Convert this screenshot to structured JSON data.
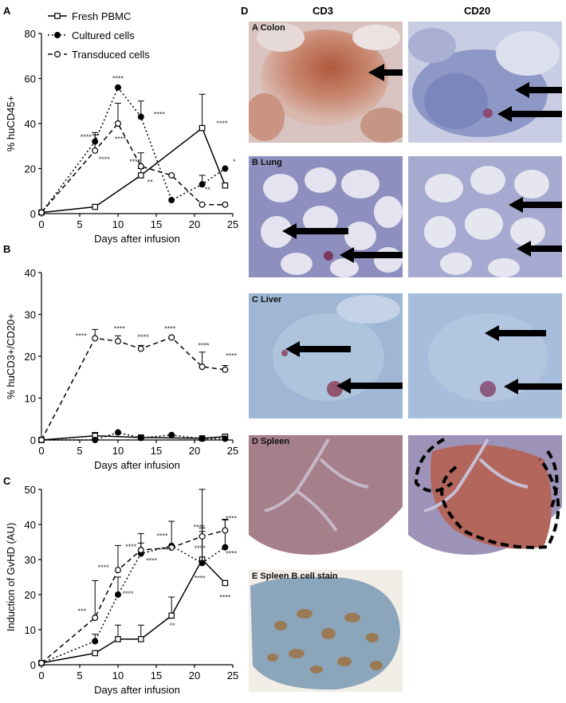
{
  "panels": {
    "a": "A",
    "b": "B",
    "c": "C",
    "d": "D"
  },
  "columns": {
    "cd3": "CD3",
    "cd20": "CD20"
  },
  "micrographs": {
    "colon": "A Colon",
    "lung": "B Lung",
    "liver": "C Liver",
    "spleen": "D Spleen",
    "spleen_b": "E Spleen B cell stain"
  },
  "legend": {
    "fresh": "Fresh PBMC",
    "cultured": "Cultured cells",
    "transduced": "Transduced cells"
  },
  "chart_data": [
    {
      "type": "line",
      "panel": "A",
      "xlabel": "Days after infusion",
      "ylabel": "% huCD45+",
      "xlim": [
        0,
        25
      ],
      "ylim": [
        0,
        80
      ],
      "xticks": [
        0,
        5,
        10,
        15,
        20,
        25
      ],
      "yticks": [
        0,
        20,
        40,
        60,
        80
      ],
      "series": [
        {
          "name": "Fresh PBMC",
          "x": [
            0,
            7,
            13,
            21,
            24
          ],
          "y": [
            0.5,
            3,
            17,
            38,
            12.5
          ],
          "err": [
            0,
            1,
            3,
            15,
            0
          ]
        },
        {
          "name": "Cultured cells",
          "x": [
            0,
            7,
            10,
            13,
            17,
            21,
            24
          ],
          "y": [
            0.5,
            32,
            56,
            43,
            6,
            13,
            20
          ],
          "err": [
            0,
            4,
            0,
            7,
            0,
            4,
            0
          ]
        },
        {
          "name": "Transduced cells",
          "x": [
            0,
            7,
            10,
            13,
            17,
            21,
            24
          ],
          "y": [
            0.5,
            28,
            40,
            21,
            17,
            4,
            4
          ],
          "err": [
            0,
            7,
            9,
            6,
            0,
            0,
            0
          ]
        }
      ],
      "annotations": [
        {
          "x": 5.8,
          "y": 33,
          "text": "****"
        },
        {
          "x": 8.2,
          "y": 23,
          "text": "****"
        },
        {
          "x": 10,
          "y": 59,
          "text": "****"
        },
        {
          "x": 10.3,
          "y": 32,
          "text": "****"
        },
        {
          "x": 15.4,
          "y": 43,
          "text": "****"
        },
        {
          "x": 12.2,
          "y": 22,
          "text": "****"
        },
        {
          "x": 14.2,
          "y": 13,
          "text": "**"
        },
        {
          "x": 21.7,
          "y": 9.5,
          "text": "**"
        },
        {
          "x": 23.6,
          "y": 39,
          "text": "****"
        },
        {
          "x": 25.2,
          "y": 22,
          "text": "*"
        }
      ]
    },
    {
      "type": "line",
      "panel": "B",
      "xlabel": "Days after infusion",
      "ylabel": "% huCD3+/CD20+",
      "xlim": [
        0,
        25
      ],
      "ylim": [
        0,
        40
      ],
      "xticks": [
        0,
        5,
        10,
        15,
        20,
        25
      ],
      "yticks": [
        0,
        10,
        20,
        30,
        40
      ],
      "series": [
        {
          "name": "Fresh PBMC",
          "x": [
            0,
            7,
            13,
            21,
            24
          ],
          "y": [
            0,
            1,
            0.6,
            0.4,
            0.8
          ],
          "err": [
            0,
            0.8,
            0.3,
            0.3,
            0.4
          ]
        },
        {
          "name": "Cultured cells",
          "x": [
            0,
            7,
            10,
            13,
            17,
            21,
            24
          ],
          "y": [
            0,
            0,
            1.8,
            0.5,
            1.2,
            0.3,
            0.3
          ],
          "err": [
            0,
            0,
            0,
            0,
            0,
            0,
            0
          ]
        },
        {
          "name": "Transduced cells",
          "x": [
            0,
            7,
            10,
            13,
            17,
            21,
            24
          ],
          "y": [
            0,
            24.3,
            23.6,
            21.8,
            24.5,
            17.5,
            16.8
          ],
          "err": [
            0,
            2.1,
            1.3,
            0.8,
            0,
            3.5,
            1.0
          ]
        }
      ],
      "annotations": [
        {
          "x": 5.2,
          "y": 24.3,
          "text": "****"
        },
        {
          "x": 10.2,
          "y": 26,
          "text": "****"
        },
        {
          "x": 13.3,
          "y": 24,
          "text": "****"
        },
        {
          "x": 16.8,
          "y": 26,
          "text": "****"
        },
        {
          "x": 21.2,
          "y": 22,
          "text": "****"
        },
        {
          "x": 24.8,
          "y": 19.5,
          "text": "****"
        }
      ]
    },
    {
      "type": "line",
      "panel": "C",
      "xlabel": "Days after infusion",
      "ylabel": "Induction of GvHD (AU)",
      "xlim": [
        0,
        25
      ],
      "ylim": [
        0,
        50
      ],
      "xticks": [
        0,
        5,
        10,
        15,
        20,
        25
      ],
      "yticks": [
        0,
        10,
        20,
        30,
        40,
        50
      ],
      "series": [
        {
          "name": "Fresh PBMC",
          "x": [
            0,
            7,
            10,
            13,
            17,
            21,
            24
          ],
          "y": [
            0.5,
            3.3,
            7.3,
            7.3,
            14,
            30,
            23.3
          ],
          "err": [
            0,
            0,
            4,
            4,
            5.3,
            8,
            0
          ]
        },
        {
          "name": "Cultured cells",
          "x": [
            0,
            7,
            10,
            13,
            17,
            21,
            24
          ],
          "y": [
            0.5,
            6.7,
            20,
            31.7,
            33.9,
            29,
            33.5
          ],
          "err": [
            0,
            2,
            5,
            3,
            7,
            10,
            8
          ]
        },
        {
          "name": "Transduced cells",
          "x": [
            0,
            7,
            10,
            13,
            17,
            21,
            24
          ],
          "y": [
            0.5,
            13.4,
            27,
            32.7,
            33.4,
            36.6,
            38.3
          ],
          "err": [
            0,
            10.6,
            7,
            4.7,
            0,
            13.4,
            3
          ]
        }
      ],
      "annotations": [
        {
          "x": 5.3,
          "y": 14.5,
          "text": "***"
        },
        {
          "x": 8.1,
          "y": 27,
          "text": "****"
        },
        {
          "x": 11.3,
          "y": 19.5,
          "text": "****"
        },
        {
          "x": 11.7,
          "y": 33,
          "text": "****"
        },
        {
          "x": 14.4,
          "y": 29,
          "text": "****"
        },
        {
          "x": 15.8,
          "y": 36,
          "text": "****"
        },
        {
          "x": 16.3,
          "y": 32,
          "text": "****"
        },
        {
          "x": 20.6,
          "y": 38.5,
          "text": "****"
        },
        {
          "x": 20.7,
          "y": 32.5,
          "text": "****"
        },
        {
          "x": 24.8,
          "y": 41,
          "text": "****"
        },
        {
          "x": 24.8,
          "y": 31,
          "text": "****"
        },
        {
          "x": 20.7,
          "y": 24,
          "text": "****"
        },
        {
          "x": 24.0,
          "y": 18.5,
          "text": "****"
        },
        {
          "x": 17.1,
          "y": 10.5,
          "text": "**"
        }
      ]
    }
  ]
}
